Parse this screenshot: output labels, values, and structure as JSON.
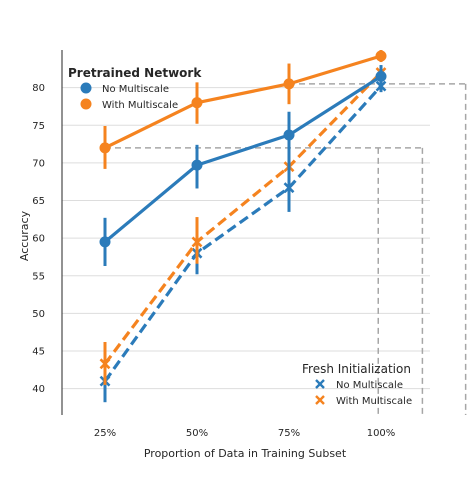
{
  "chart_data": {
    "type": "line",
    "xlabel": "Proportion of Data in Training Subset",
    "ylabel": "Accuracy",
    "categories": [
      "25%",
      "50%",
      "75%",
      "100%"
    ],
    "yticks": [
      40,
      45,
      50,
      55,
      60,
      65,
      70,
      75,
      80
    ],
    "ylim": [
      36.5,
      85
    ],
    "grid": "horizontal",
    "colors": {
      "blue": "#2b7bba",
      "orange": "#f5831f",
      "reference": "#a6a6a6",
      "grid": "#dddddd"
    },
    "series": [
      {
        "legend_group": "pretrained",
        "name": "No Multiscale",
        "color": "#2b7bba",
        "line": "solid",
        "marker": "circle",
        "values": [
          59.5,
          69.7,
          73.7,
          81.5
        ],
        "error_low": [
          56.3,
          66.6,
          63.5,
          80.5
        ],
        "error_high": [
          62.7,
          72.4,
          76.8,
          83.0
        ]
      },
      {
        "legend_group": "pretrained",
        "name": "With Multiscale",
        "color": "#f5831f",
        "line": "solid",
        "marker": "circle",
        "values": [
          72.0,
          78.0,
          80.5,
          84.2
        ],
        "error_low": [
          69.2,
          75.2,
          77.8,
          83.4
        ],
        "error_high": [
          74.9,
          80.7,
          83.2,
          85.0
        ]
      },
      {
        "legend_group": "fresh",
        "name": "No Multiscale",
        "color": "#2b7bba",
        "line": "dashed",
        "marker": "x",
        "values": [
          41.0,
          58.0,
          66.7,
          80.2
        ],
        "error_low": [
          38.2,
          55.2,
          63.5,
          79.4
        ],
        "error_high": [
          43.6,
          60.7,
          70.0,
          81.0
        ]
      },
      {
        "legend_group": "fresh",
        "name": "With Multiscale",
        "color": "#f5831f",
        "line": "dashed",
        "marker": "x",
        "values": [
          43.3,
          59.5,
          69.5,
          82.0
        ],
        "error_low": [
          40.5,
          56.6,
          66.5,
          81.2
        ],
        "error_high": [
          46.2,
          62.8,
          72.5,
          82.8
        ]
      }
    ],
    "reference_lines": [
      {
        "y": 72.0,
        "from_category": "25%",
        "to_x": 3.45
      },
      {
        "y": 80.5,
        "from_category": "75%",
        "to_x": 3.92
      }
    ],
    "reference_drops": [
      {
        "x": 2.97,
        "from_y": 72.0
      },
      {
        "x": 3.45,
        "from_y": 72.0
      },
      {
        "x": 3.92,
        "from_y": 80.5
      }
    ],
    "legends": [
      {
        "id": "pretrained",
        "title": "Pretrained Network",
        "position": "top-left",
        "entries": [
          "No Multiscale",
          "With Multiscale"
        ]
      },
      {
        "id": "fresh",
        "title": "Fresh Initialization",
        "position": "bottom-right",
        "entries": [
          "No Multiscale",
          "With Multiscale"
        ]
      }
    ]
  }
}
